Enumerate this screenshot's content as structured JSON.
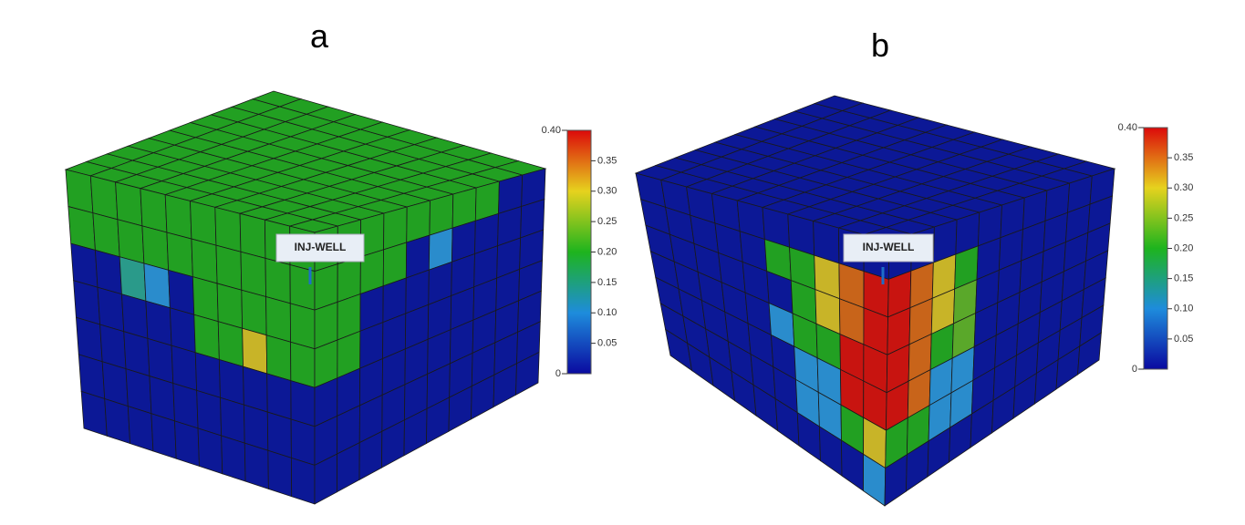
{
  "panels": [
    {
      "label": "a",
      "well_label": "INJ-WELL",
      "colorbar_ticks": [
        "0.40",
        "0.35",
        "0.30",
        "0.25",
        "0.20",
        "0.15",
        "0.10",
        "0.05",
        "0"
      ]
    },
    {
      "label": "b",
      "well_label": "INJ-WELL",
      "colorbar_ticks": [
        "0.40",
        "0.35",
        "0.30",
        "0.25",
        "0.20",
        "0.15",
        "0.10",
        "0.05",
        "0"
      ]
    }
  ]
}
